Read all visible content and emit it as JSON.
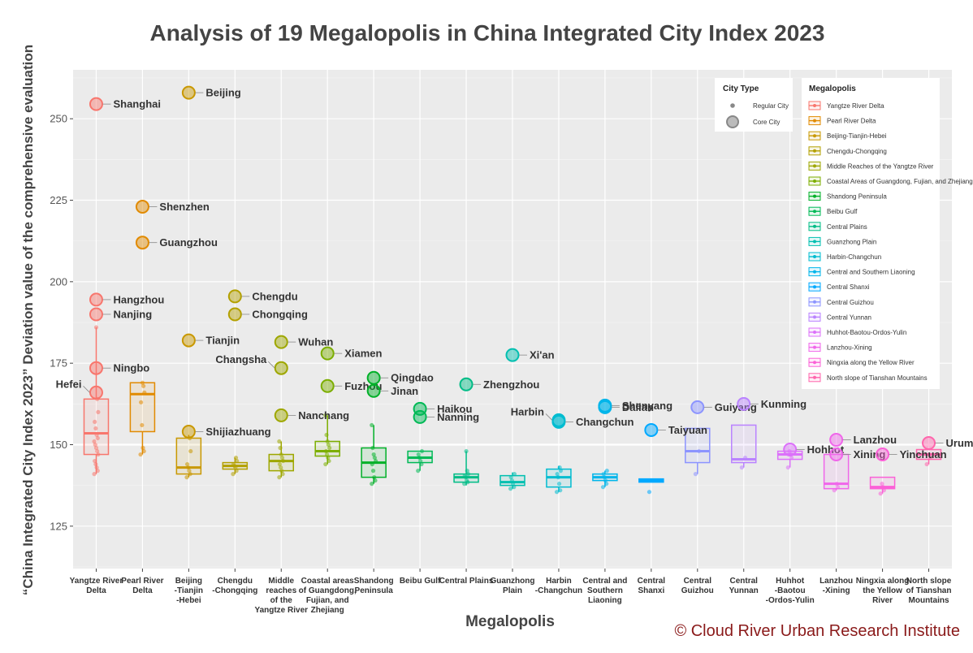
{
  "title": "Analysis of 19 Megalopolis in China Integrated City Index 2023",
  "copyright": "© Cloud River Urban Research Institute",
  "colors": {
    "panel": "#ebebeb",
    "grid": "#ffffff",
    "category_palette": [
      "#F8766D",
      "#E58700",
      "#C99800",
      "#A3A500",
      "#6BB100",
      "#00BA38",
      "#00BF7D",
      "#00C0AF",
      "#00BCD8",
      "#00B0F6",
      "#619CFF",
      "#B983FF",
      "#E76BF3",
      "#FD61D1",
      "#FF67A4",
      "#F8766D",
      "#E58700",
      "#C99800",
      "#A3A500"
    ]
  },
  "chart_data": {
    "type": "boxplot",
    "xlabel": "Megalopolis",
    "ylabel": "“China Integrated City Index 2023” Deviation value of the comprehensive evaluation",
    "ylim": [
      112,
      265
    ],
    "yticks": [
      125,
      150,
      175,
      200,
      225,
      250
    ],
    "reference_line": 150,
    "grid": true,
    "categories": [
      {
        "label": "Yangtze River\nDelta",
        "color": "#F8766D",
        "q1": 147,
        "median": 153.5,
        "q3": 164,
        "whisker_low": 141,
        "whisker_high": 186,
        "points": [
          141,
          142,
          143,
          144,
          145,
          147,
          148,
          149,
          150,
          151,
          152,
          153,
          155,
          157,
          160,
          164,
          186
        ]
      },
      {
        "label": "Pearl River\nDelta",
        "color": "#E18A00",
        "q1": 154,
        "median": 165.5,
        "q3": 169,
        "whisker_low": 147,
        "whisker_high": 169,
        "points": [
          147,
          148,
          149,
          156,
          163,
          166,
          168,
          169
        ]
      },
      {
        "label": "Beijing\n-Tianjin\n-Hebei",
        "color": "#C99800",
        "q1": 141,
        "median": 143,
        "q3": 152,
        "whisker_low": 140,
        "whisker_high": 153,
        "points": [
          140,
          141,
          142,
          143,
          144,
          148,
          152
        ]
      },
      {
        "label": "Chengdu\n-Chongqing",
        "color": "#B3A000",
        "q1": 142.5,
        "median": 143.5,
        "q3": 144.5,
        "whisker_low": 141,
        "whisker_high": 146,
        "points": [
          141,
          142,
          143,
          143.5,
          144,
          145,
          146
        ]
      },
      {
        "label": "Middle\nreaches\nof the\nYangtze River",
        "color": "#9EA700",
        "q1": 142,
        "median": 145,
        "q3": 147,
        "whisker_low": 140,
        "whisker_high": 151,
        "points": [
          140,
          141,
          142,
          143,
          144,
          145,
          146,
          147,
          149,
          151
        ]
      },
      {
        "label": "Coastal areas\nof Guangdong,\nFujian, and\nZhejiang",
        "color": "#7CAE00",
        "q1": 146.5,
        "median": 148,
        "q3": 151,
        "whisker_low": 144,
        "whisker_high": 159,
        "points": [
          144,
          145,
          146,
          147,
          148,
          149,
          150,
          151,
          153,
          159
        ]
      },
      {
        "label": "Shandong\nPeninsula",
        "color": "#00B028",
        "q1": 140,
        "median": 144.5,
        "q3": 149,
        "whisker_low": 138,
        "whisker_high": 156,
        "points": [
          138,
          139,
          140,
          142,
          144,
          145,
          146,
          147,
          149,
          156
        ]
      },
      {
        "label": "Beibu Gulf",
        "color": "#00B956",
        "q1": 144.5,
        "median": 146,
        "q3": 148,
        "whisker_low": 142,
        "whisker_high": 148,
        "points": [
          142,
          144,
          145,
          146,
          147,
          148
        ]
      },
      {
        "label": "Central Plains",
        "color": "#00BC86",
        "q1": 138.5,
        "median": 140,
        "q3": 141,
        "whisker_low": 137.5,
        "whisker_high": 148,
        "points": [
          138,
          138.5,
          139,
          140,
          140.5,
          141,
          142,
          148
        ]
      },
      {
        "label": "Guanzhong\nPlain",
        "color": "#00BFB0",
        "q1": 137.5,
        "median": 138.5,
        "q3": 140.5,
        "whisker_low": 136.5,
        "whisker_high": 141.5,
        "points": [
          136.5,
          137,
          138,
          139,
          140,
          141
        ]
      },
      {
        "label": "Harbin\n-Changchun",
        "color": "#00BCD0",
        "q1": 137,
        "median": 140,
        "q3": 142.5,
        "whisker_low": 135.5,
        "whisker_high": 143.5,
        "points": [
          135.5,
          136,
          138,
          140,
          141,
          142,
          143
        ]
      },
      {
        "label": "Central and\nSouthern\nLiaoning",
        "color": "#00B5EA",
        "q1": 139,
        "median": 140,
        "q3": 141,
        "whisker_low": 137,
        "whisker_high": 142,
        "points": [
          137,
          138,
          139,
          140,
          141,
          142
        ]
      },
      {
        "label": "Central\nShanxi",
        "color": "#00A9FF",
        "q1": 138.5,
        "median": 139,
        "q3": 139.5,
        "whisker_low": 138.5,
        "whisker_high": 139.5,
        "points": [
          135.5,
          139
        ]
      },
      {
        "label": "Central\nGuizhou",
        "color": "#8C94FF",
        "q1": 144.5,
        "median": 148,
        "q3": 155,
        "whisker_low": 141,
        "whisker_high": 155,
        "points": [
          141,
          148
        ]
      },
      {
        "label": "Central\nYunnan",
        "color": "#BA83FF",
        "q1": 144.5,
        "median": 145.5,
        "q3": 156,
        "whisker_low": 143,
        "whisker_high": 156,
        "points": [
          143,
          146
        ]
      },
      {
        "label": "Huhhot\n-Baotou\n-Ordos-Yulin",
        "color": "#DC71FA",
        "q1": 145.5,
        "median": 147,
        "q3": 148,
        "whisker_low": 143,
        "whisker_high": 148,
        "points": [
          143,
          146,
          147,
          148
        ]
      },
      {
        "label": "Lanzhou\n-Xining",
        "color": "#F066EA",
        "q1": 136.5,
        "median": 138,
        "q3": 147,
        "whisker_low": 136,
        "whisker_high": 147,
        "points": [
          136,
          137,
          138
        ]
      },
      {
        "label": "Ningxia along\nthe Yellow\nRiver",
        "color": "#FB61D7",
        "q1": 136.5,
        "median": 137,
        "q3": 140,
        "whisker_low": 135,
        "whisker_high": 140,
        "points": [
          135,
          136,
          137,
          138
        ]
      },
      {
        "label": "North slope\nof Tianshan\nMountains",
        "color": "#FF65AC",
        "q1": 145.5,
        "median": 147,
        "q3": 148.5,
        "whisker_low": 144,
        "whisker_high": 148.5,
        "points": [
          144,
          146,
          147
        ]
      }
    ],
    "core_cities": [
      {
        "name": "Shanghai",
        "cat": 0,
        "value": 254.5,
        "anchor": "right"
      },
      {
        "name": "Hangzhou",
        "cat": 0,
        "value": 194.5,
        "anchor": "right"
      },
      {
        "name": "Nanjing",
        "cat": 0,
        "value": 190,
        "anchor": "right"
      },
      {
        "name": "Ningbo",
        "cat": 0,
        "value": 173.5,
        "anchor": "right"
      },
      {
        "name": "Hefei",
        "cat": 0,
        "value": 166,
        "anchor": "left"
      },
      {
        "name": "Shenzhen",
        "cat": 1,
        "value": 223,
        "anchor": "right"
      },
      {
        "name": "Guangzhou",
        "cat": 1,
        "value": 212,
        "anchor": "right"
      },
      {
        "name": "Beijing",
        "cat": 2,
        "value": 258,
        "anchor": "right"
      },
      {
        "name": "Tianjin",
        "cat": 2,
        "value": 182,
        "anchor": "right"
      },
      {
        "name": "Shijiazhuang",
        "cat": 2,
        "value": 154,
        "anchor": "right"
      },
      {
        "name": "Chengdu",
        "cat": 3,
        "value": 195.5,
        "anchor": "right"
      },
      {
        "name": "Chongqing",
        "cat": 3,
        "value": 190,
        "anchor": "right"
      },
      {
        "name": "Wuhan",
        "cat": 4,
        "value": 181.5,
        "anchor": "right"
      },
      {
        "name": "Changsha",
        "cat": 4,
        "value": 173.5,
        "anchor": "left"
      },
      {
        "name": "Nanchang",
        "cat": 4,
        "value": 159,
        "anchor": "right"
      },
      {
        "name": "Xiamen",
        "cat": 5,
        "value": 178,
        "anchor": "right"
      },
      {
        "name": "Fuzhou",
        "cat": 5,
        "value": 168,
        "anchor": "right"
      },
      {
        "name": "Qingdao",
        "cat": 6,
        "value": 170.5,
        "anchor": "right"
      },
      {
        "name": "Jinan",
        "cat": 6,
        "value": 166.5,
        "anchor": "right"
      },
      {
        "name": "Haikou",
        "cat": 7,
        "value": 161,
        "anchor": "right"
      },
      {
        "name": "Nanning",
        "cat": 7,
        "value": 158.5,
        "anchor": "right"
      },
      {
        "name": "Zhengzhou",
        "cat": 8,
        "value": 168.5,
        "anchor": "right"
      },
      {
        "name": "Xi'an",
        "cat": 9,
        "value": 177.5,
        "anchor": "right"
      },
      {
        "name": "Harbin",
        "cat": 10,
        "value": 157.5,
        "anchor": "left"
      },
      {
        "name": "Changchun",
        "cat": 10,
        "value": 157,
        "anchor": "right"
      },
      {
        "name": "Shenyang",
        "cat": 11,
        "value": 162,
        "anchor": "right"
      },
      {
        "name": "Dalian",
        "cat": 11,
        "value": 161.5,
        "anchor": "right"
      },
      {
        "name": "Taiyuan",
        "cat": 12,
        "value": 154.5,
        "anchor": "right"
      },
      {
        "name": "Guiyang",
        "cat": 13,
        "value": 161.5,
        "anchor": "right"
      },
      {
        "name": "Kunming",
        "cat": 14,
        "value": 162.5,
        "anchor": "right"
      },
      {
        "name": "Hohhot",
        "cat": 15,
        "value": 148.5,
        "anchor": "right"
      },
      {
        "name": "Lanzhou",
        "cat": 16,
        "value": 151.5,
        "anchor": "right"
      },
      {
        "name": "Xining",
        "cat": 16,
        "value": 147,
        "anchor": "right"
      },
      {
        "name": "Yinchuan",
        "cat": 17,
        "value": 147,
        "anchor": "right"
      },
      {
        "name": "Urumqi",
        "cat": 18,
        "value": 150.5,
        "anchor": "right"
      }
    ],
    "legend_city_type": {
      "title": "City Type",
      "items": [
        "Regular City",
        "Core City"
      ]
    },
    "legend_megalopolis": {
      "title": "Megalopolis",
      "items": [
        "Yangtze River Delta",
        "Pearl River Delta",
        "Beijing-Tianjin-Hebei",
        "Chengdu-Chongqing",
        "Middle Reaches of the Yangtze River",
        "Coastal Areas of Guangdong, Fujian, and Zhejiang",
        "Shandong Peninsula",
        "Beibu Gulf",
        "Central Plains",
        "Guanzhong Plain",
        "Harbin-Changchun",
        "Central and Southern Liaoning",
        "Central Shanxi",
        "Central Guizhou",
        "Central Yunnan",
        " Huhhot-Baotou-Ordos-Yulin",
        "Lanzhou-Xining",
        "Ningxia along the Yellow River",
        "North slope of Tianshan Mountains"
      ]
    }
  }
}
